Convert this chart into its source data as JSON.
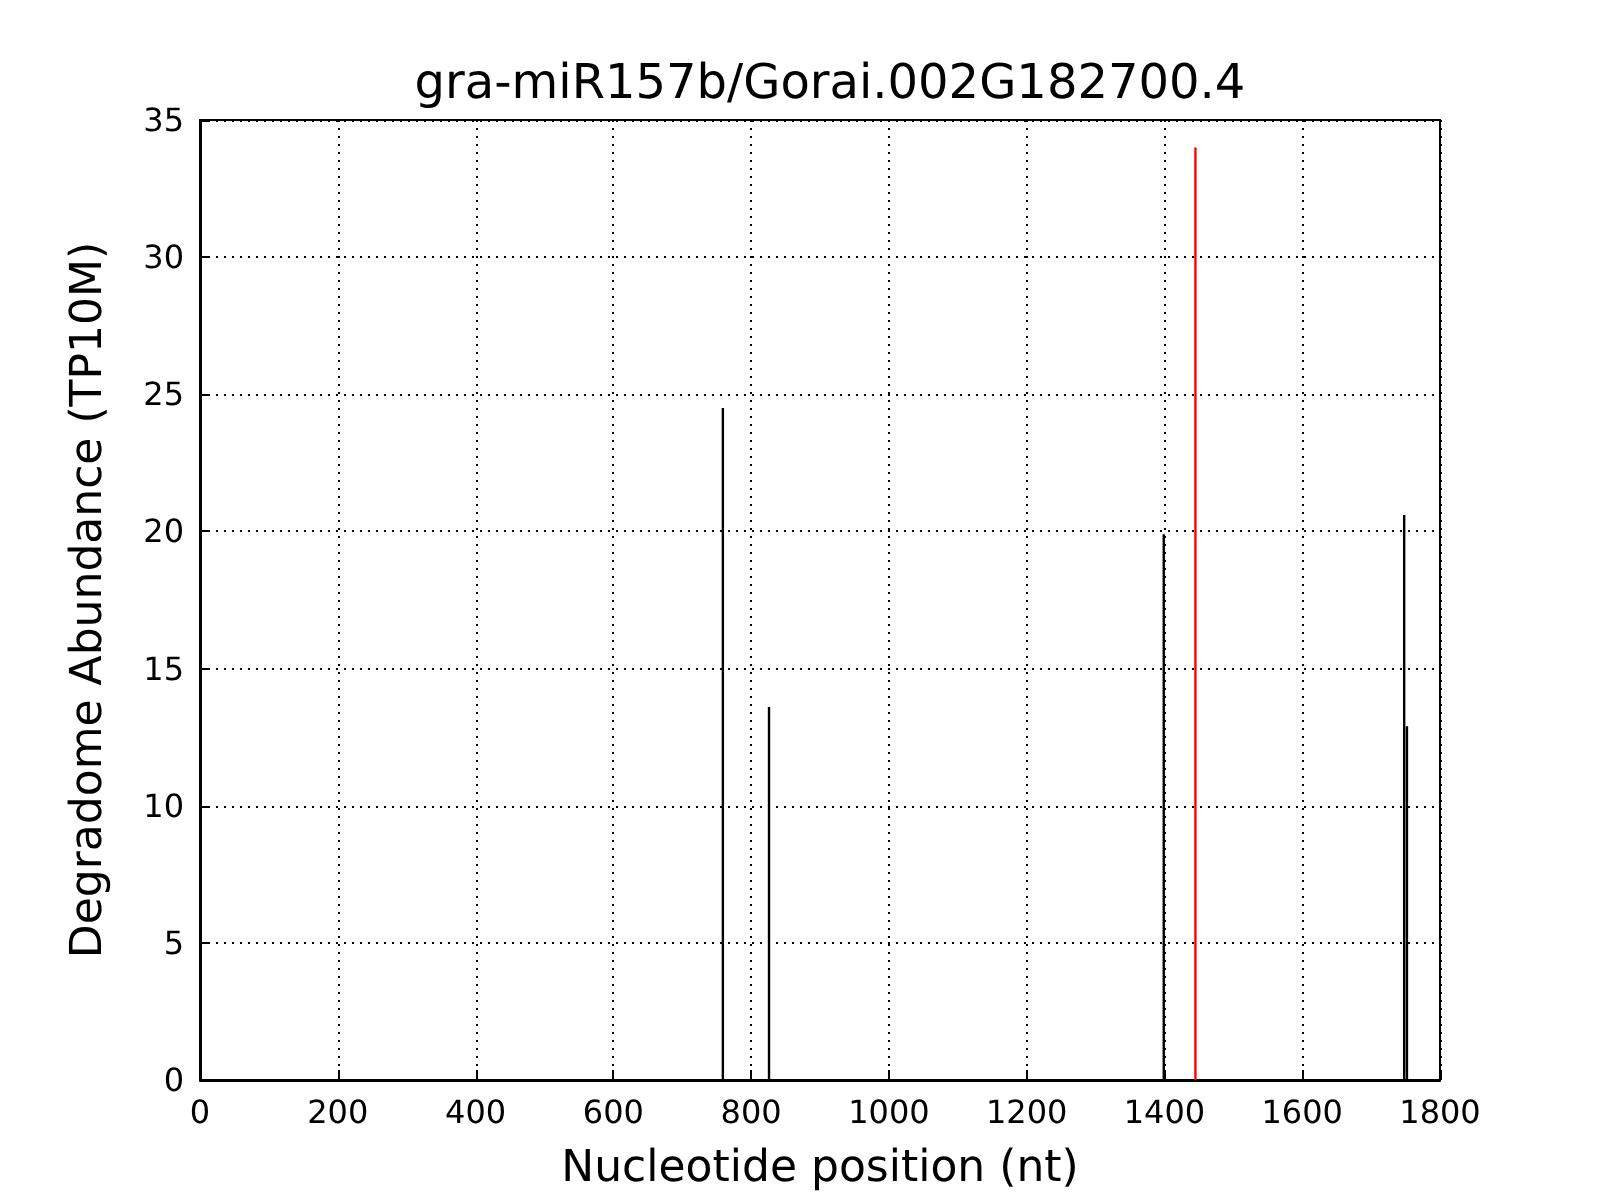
{
  "chart_data": {
    "type": "bar",
    "title": "gra-miR157b/Gorai.002G182700.4",
    "xlabel": "Nucleotide position (nt)",
    "ylabel": "Degradome Abundance (TP10M)",
    "x": [
      759,
      826,
      1399,
      1445,
      1748,
      1752
    ],
    "values": [
      24.5,
      13.6,
      19.9,
      34.0,
      20.6,
      12.9
    ],
    "colors": [
      "#000000",
      "#000000",
      "#000000",
      "#ff0000",
      "#000000",
      "#000000"
    ],
    "xlim": [
      0,
      1800
    ],
    "xticks": [
      0,
      200,
      400,
      600,
      800,
      1000,
      1200,
      1400,
      1600,
      1800
    ],
    "ylim": [
      0,
      35
    ],
    "yticks": [
      0,
      5,
      10,
      15,
      20,
      25,
      30,
      35
    ],
    "grid": true
  }
}
